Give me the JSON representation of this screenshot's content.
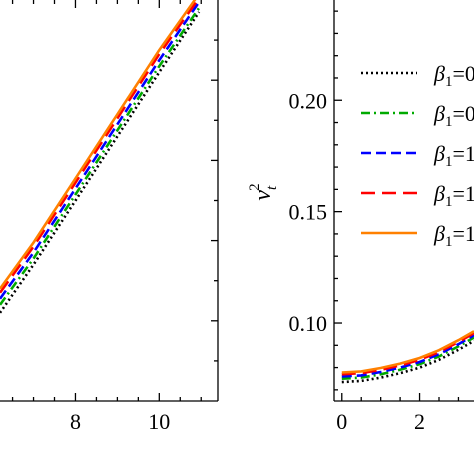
{
  "chart_data": [
    {
      "type": "line",
      "xlabel": "",
      "ylabel": "",
      "xlim": [
        6.2,
        11.4
      ],
      "ylim": [
        0.0,
        1.0
      ],
      "x_ticks": [
        "8",
        "10"
      ],
      "x_tick_values": [
        8,
        10
      ],
      "grid": false,
      "series": [
        {
          "color": "#000000",
          "style": "dotted",
          "x": [
            6.2,
            7.0,
            8.0,
            9.0,
            10.0,
            10.95
          ],
          "y": [
            0.22,
            0.34,
            0.5,
            0.66,
            0.82,
            0.97
          ]
        },
        {
          "color": "#00aa00",
          "style": "dashdot",
          "x": [
            6.2,
            7.0,
            8.0,
            9.0,
            10.0,
            10.95
          ],
          "y": [
            0.24,
            0.355,
            0.515,
            0.675,
            0.835,
            0.98
          ]
        },
        {
          "color": "#0000ff",
          "style": "dashed",
          "x": [
            6.2,
            7.0,
            8.0,
            9.0,
            10.0,
            10.95
          ],
          "y": [
            0.255,
            0.37,
            0.53,
            0.69,
            0.85,
            0.995
          ]
        },
        {
          "color": "#ff0000",
          "style": "longdash",
          "x": [
            6.2,
            7.0,
            8.0,
            9.0,
            10.0,
            10.95
          ],
          "y": [
            0.27,
            0.385,
            0.545,
            0.705,
            0.865,
            1.005
          ]
        },
        {
          "color": "#ff8000",
          "style": "solid",
          "x": [
            6.2,
            7.0,
            8.0,
            9.0,
            10.0,
            10.95
          ],
          "y": [
            0.28,
            0.395,
            0.555,
            0.715,
            0.875,
            1.015
          ]
        }
      ]
    },
    {
      "type": "line",
      "xlabel": "",
      "ylabel": "v_t^2",
      "xlim": [
        -0.2,
        3.4
      ],
      "ylim": [
        0.065,
        0.245
      ],
      "x_ticks": [
        "0",
        "2"
      ],
      "x_tick_values": [
        0,
        2
      ],
      "y_ticks": [
        "0.10",
        "0.15",
        "0.20"
      ],
      "y_tick_values": [
        0.1,
        0.15,
        0.2
      ],
      "grid": false,
      "legend_position": "right",
      "series": [
        {
          "label_sub": "1",
          "label_tail": "=0",
          "color": "#000000",
          "style": "dotted",
          "x": [
            0,
            0.5,
            1.0,
            1.5,
            2.0,
            2.5,
            3.0,
            3.4
          ],
          "y": [
            0.0735,
            0.074,
            0.0755,
            0.0775,
            0.08,
            0.0835,
            0.088,
            0.092
          ]
        },
        {
          "label_sub": "1",
          "label_tail": "=0",
          "color": "#00aa00",
          "style": "dashdot",
          "x": [
            0,
            0.5,
            1.0,
            1.5,
            2.0,
            2.5,
            3.0,
            3.4
          ],
          "y": [
            0.075,
            0.0755,
            0.077,
            0.079,
            0.0815,
            0.085,
            0.0895,
            0.0935
          ]
        },
        {
          "label_sub": "1",
          "label_tail": "=1",
          "color": "#0000ff",
          "style": "dashed",
          "x": [
            0,
            0.5,
            1.0,
            1.5,
            2.0,
            2.5,
            3.0,
            3.4
          ],
          "y": [
            0.076,
            0.0765,
            0.078,
            0.08,
            0.0825,
            0.086,
            0.0905,
            0.0945
          ]
        },
        {
          "label_sub": "1",
          "label_tail": "=1",
          "color": "#ff0000",
          "style": "longdash",
          "x": [
            0,
            0.5,
            1.0,
            1.5,
            2.0,
            2.5,
            3.0,
            3.4
          ],
          "y": [
            0.077,
            0.0775,
            0.079,
            0.081,
            0.0835,
            0.087,
            0.0915,
            0.0955
          ]
        },
        {
          "label_sub": "1",
          "label_tail": "=1",
          "color": "#ff8000",
          "style": "solid",
          "x": [
            0,
            0.5,
            1.0,
            1.5,
            2.0,
            2.5,
            3.0,
            3.4
          ],
          "y": [
            0.0778,
            0.0783,
            0.0798,
            0.0818,
            0.0843,
            0.0878,
            0.0923,
            0.0963
          ]
        }
      ]
    }
  ]
}
